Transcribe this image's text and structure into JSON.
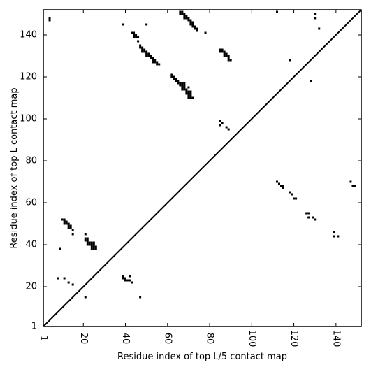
{
  "chart_data": {
    "type": "scatter",
    "xlabel": "Residue index of top L/5 contact map",
    "ylabel": "Residue index of top L contact map",
    "xlim": [
      1,
      152
    ],
    "ylim": [
      1,
      152
    ],
    "xticks": [
      1,
      20,
      40,
      60,
      80,
      100,
      120,
      140
    ],
    "yticks": [
      1,
      20,
      40,
      60,
      80,
      100,
      120,
      140
    ],
    "xtick_labels": [
      "1",
      "20",
      "40",
      "60",
      "80",
      "100",
      "120",
      "140"
    ],
    "ytick_labels": [
      "1",
      "20",
      "40",
      "60",
      "80",
      "100",
      "120",
      "140"
    ],
    "grid": false,
    "marker_color": "#000000",
    "diagonal": true,
    "series": [
      {
        "points": [
          [
            4,
            148
          ],
          [
            4,
            147
          ],
          [
            39,
            145
          ],
          [
            50,
            145
          ],
          [
            43,
            141
          ],
          [
            44,
            141
          ],
          [
            44,
            140
          ],
          [
            45,
            140
          ],
          [
            44,
            139
          ],
          [
            45,
            139
          ],
          [
            46,
            139
          ],
          [
            46,
            137
          ],
          [
            47,
            135
          ],
          [
            47,
            134
          ],
          [
            48,
            134
          ],
          [
            48,
            133
          ],
          [
            49,
            133
          ],
          [
            48,
            132
          ],
          [
            49,
            132
          ],
          [
            50,
            132
          ],
          [
            50,
            131
          ],
          [
            51,
            131
          ],
          [
            50,
            130
          ],
          [
            51,
            130
          ],
          [
            52,
            130
          ],
          [
            52,
            129
          ],
          [
            53,
            129
          ],
          [
            53,
            128
          ],
          [
            54,
            128
          ],
          [
            53,
            127
          ],
          [
            54,
            127
          ],
          [
            55,
            127
          ],
          [
            55,
            126
          ],
          [
            56,
            126
          ],
          [
            66,
            151
          ],
          [
            67,
            151
          ],
          [
            66,
            150
          ],
          [
            67,
            150
          ],
          [
            68,
            150
          ],
          [
            68,
            149
          ],
          [
            69,
            149
          ],
          [
            68,
            148
          ],
          [
            69,
            148
          ],
          [
            70,
            148
          ],
          [
            70,
            147
          ],
          [
            71,
            147
          ],
          [
            71,
            146
          ],
          [
            72,
            146
          ],
          [
            71,
            145
          ],
          [
            72,
            145
          ],
          [
            72,
            144
          ],
          [
            73,
            144
          ],
          [
            73,
            143
          ],
          [
            74,
            143
          ],
          [
            74,
            142
          ],
          [
            78,
            141
          ],
          [
            85,
            133
          ],
          [
            86,
            133
          ],
          [
            85,
            132
          ],
          [
            86,
            132
          ],
          [
            87,
            132
          ],
          [
            87,
            131
          ],
          [
            88,
            131
          ],
          [
            87,
            130
          ],
          [
            88,
            130
          ],
          [
            89,
            130
          ],
          [
            89,
            129
          ],
          [
            89,
            128
          ],
          [
            90,
            128
          ],
          [
            62,
            121
          ],
          [
            62,
            120
          ],
          [
            63,
            120
          ],
          [
            63,
            119
          ],
          [
            64,
            119
          ],
          [
            64,
            118
          ],
          [
            65,
            118
          ],
          [
            65,
            117
          ],
          [
            66,
            117
          ],
          [
            67,
            117
          ],
          [
            68,
            117
          ],
          [
            66,
            116
          ],
          [
            67,
            116
          ],
          [
            68,
            116
          ],
          [
            67,
            115
          ],
          [
            68,
            115
          ],
          [
            70,
            115
          ],
          [
            67,
            114
          ],
          [
            68,
            114
          ],
          [
            69,
            114
          ],
          [
            69,
            113
          ],
          [
            70,
            113
          ],
          [
            71,
            113
          ],
          [
            69,
            112
          ],
          [
            70,
            112
          ],
          [
            71,
            112
          ],
          [
            70,
            111
          ],
          [
            71,
            111
          ],
          [
            70,
            110
          ],
          [
            71,
            110
          ],
          [
            72,
            110
          ],
          [
            85,
            99
          ],
          [
            86,
            98
          ],
          [
            85,
            97
          ],
          [
            88,
            96
          ],
          [
            89,
            95
          ],
          [
            112,
            151
          ],
          [
            130,
            150
          ],
          [
            130,
            148
          ],
          [
            132,
            143
          ],
          [
            118,
            128
          ],
          [
            128,
            118
          ],
          [
            112,
            70
          ],
          [
            113,
            69
          ],
          [
            114,
            68
          ],
          [
            115,
            68
          ],
          [
            115,
            67
          ],
          [
            118,
            65
          ],
          [
            119,
            64
          ],
          [
            120,
            62
          ],
          [
            121,
            62
          ],
          [
            147,
            70
          ],
          [
            148,
            68
          ],
          [
            149,
            68
          ],
          [
            126,
            55
          ],
          [
            127,
            55
          ],
          [
            127,
            53
          ],
          [
            129,
            53
          ],
          [
            130,
            52
          ],
          [
            139,
            46
          ],
          [
            139,
            44
          ],
          [
            141,
            44
          ],
          [
            10,
            52
          ],
          [
            11,
            52
          ],
          [
            11,
            51
          ],
          [
            12,
            51
          ],
          [
            11,
            50
          ],
          [
            12,
            50
          ],
          [
            13,
            50
          ],
          [
            13,
            49
          ],
          [
            14,
            49
          ],
          [
            13,
            48
          ],
          [
            14,
            48
          ],
          [
            15,
            47
          ],
          [
            15,
            45
          ],
          [
            21,
            45
          ],
          [
            21,
            43
          ],
          [
            22,
            43
          ],
          [
            21,
            42
          ],
          [
            22,
            42
          ],
          [
            22,
            41
          ],
          [
            23,
            41
          ],
          [
            24,
            41
          ],
          [
            25,
            41
          ],
          [
            22,
            40
          ],
          [
            23,
            40
          ],
          [
            24,
            40
          ],
          [
            25,
            40
          ],
          [
            24,
            39
          ],
          [
            25,
            39
          ],
          [
            26,
            39
          ],
          [
            24,
            38
          ],
          [
            25,
            38
          ],
          [
            26,
            38
          ],
          [
            9,
            38
          ],
          [
            8,
            24
          ],
          [
            11,
            24
          ],
          [
            13,
            22
          ],
          [
            15,
            21
          ],
          [
            21,
            15
          ],
          [
            39,
            25
          ],
          [
            42,
            25
          ],
          [
            39,
            24
          ],
          [
            40,
            24
          ],
          [
            40,
            23
          ],
          [
            41,
            23
          ],
          [
            42,
            23
          ],
          [
            43,
            22
          ],
          [
            47,
            15
          ]
        ]
      }
    ]
  }
}
